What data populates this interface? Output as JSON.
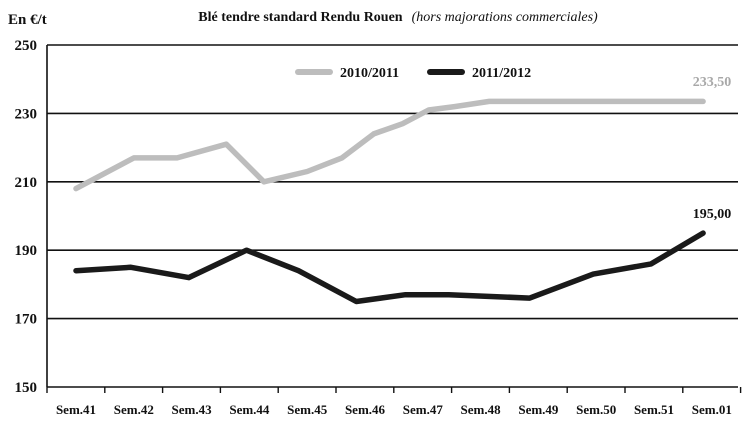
{
  "chart_data": {
    "type": "line",
    "title": "Blé tendre standard Rendu Rouen",
    "subtitle": "(hors majorations commerciales)",
    "ylabel": "En €/t",
    "xlabel": "",
    "ylim": [
      150,
      250
    ],
    "yticks": [
      "250",
      "230",
      "210",
      "190",
      "170",
      "150"
    ],
    "categories": [
      "Sem.41",
      "Sem.42",
      "Sem.43",
      "Sem.44",
      "Sem.45",
      "Sem.46",
      "Sem.47",
      "Sem.48",
      "Sem.49",
      "Sem.50",
      "Sem.51",
      "Sem.01"
    ],
    "grid": true,
    "legend_position": "top-center",
    "series": [
      {
        "name": "2010/2011",
        "color": "#bdbdbd",
        "x": [
          0,
          1,
          1.75,
          2.6,
          3.25,
          4.0,
          4.6,
          5.15,
          5.65,
          6.1,
          6.55,
          7.15,
          7.8,
          9.0,
          10.0,
          10.85
        ],
        "values": [
          208,
          217,
          217,
          221,
          210,
          213,
          217,
          224,
          227,
          231,
          232,
          233.5,
          233.5,
          233.5,
          233.5,
          233.5
        ],
        "end_label": "233,50"
      },
      {
        "name": "2011/2012",
        "color": "#1a1a1a",
        "x": [
          0,
          0.95,
          1.95,
          2.95,
          3.85,
          4.85,
          5.7,
          6.45,
          7.85,
          8.95,
          9.95,
          10.85
        ],
        "values": [
          184,
          185,
          182,
          190,
          184,
          175,
          177,
          177,
          176,
          183,
          186,
          195
        ],
        "end_label": "195,00"
      }
    ]
  }
}
